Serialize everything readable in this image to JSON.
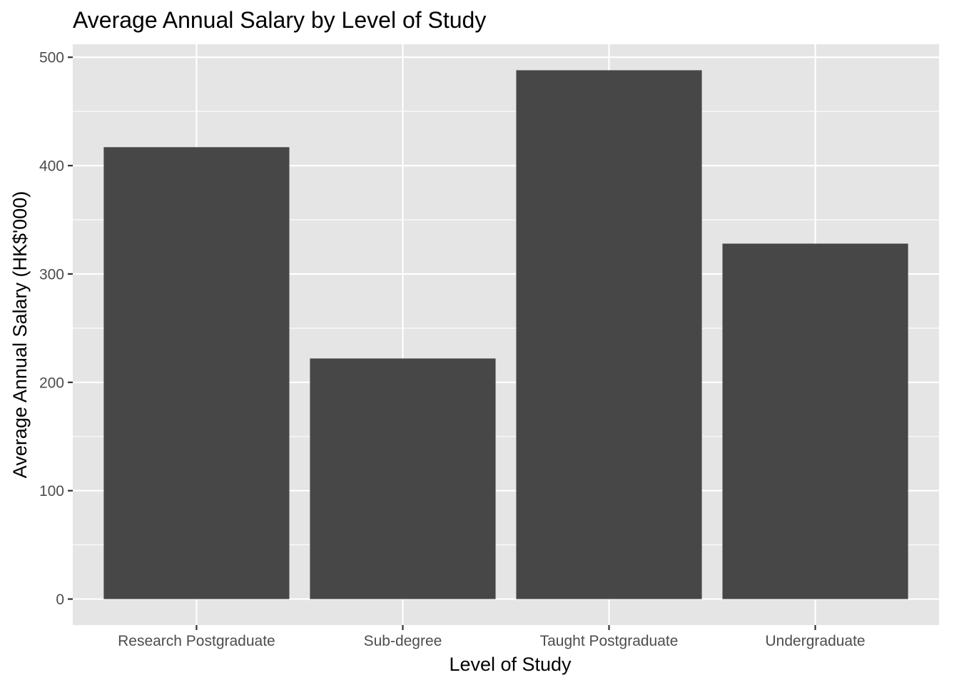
{
  "chart_data": {
    "type": "bar",
    "title": "Average Annual Salary by Level of Study",
    "xlabel": "Level of Study",
    "ylabel": "Average Annual Salary (HK$'000)",
    "categories": [
      "Research Postgraduate",
      "Sub-degree",
      "Taught Postgraduate",
      "Undergraduate"
    ],
    "values": [
      417,
      222,
      488,
      328
    ],
    "ylim": [
      -24,
      512
    ],
    "yticks": [
      0,
      100,
      200,
      300,
      400,
      500
    ],
    "ytick_labels": [
      "0",
      "100",
      "200",
      "300",
      "400",
      "500"
    ],
    "grid": true,
    "legend": "none",
    "colors": {
      "bar": "#474747",
      "panel": "#e5e5e5",
      "grid": "#ffffff",
      "ticks": "#333333"
    }
  }
}
